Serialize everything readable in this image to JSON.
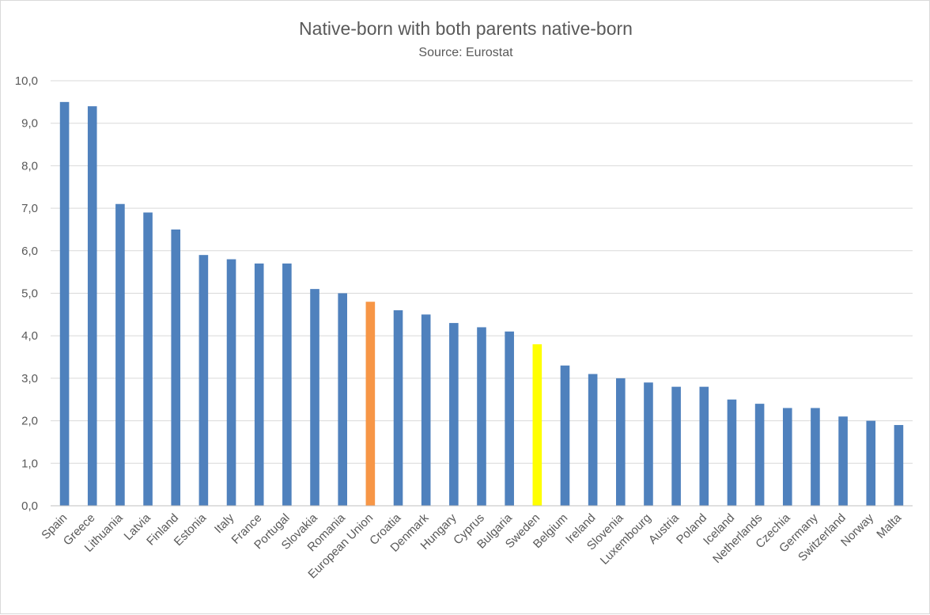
{
  "chart_data": {
    "type": "bar",
    "title": "Native-born with both parents native-born",
    "subtitle": "Source: Eurostat",
    "xlabel": "",
    "ylabel": "",
    "ylim": [
      0,
      10
    ],
    "yticks": [
      "0,0",
      "1,0",
      "2,0",
      "3,0",
      "4,0",
      "5,0",
      "6,0",
      "7,0",
      "8,0",
      "9,0",
      "10,0"
    ],
    "grid": true,
    "legend": "none",
    "categories": [
      "Spain",
      "Greece",
      "Lithuania",
      "Latvia",
      "Finland",
      "Estonia",
      "Italy",
      "France",
      "Portugal",
      "Slovakia",
      "Romania",
      "European Union",
      "Croatia",
      "Denmark",
      "Hungary",
      "Cyprus",
      "Bulgaria",
      "Sweden",
      "Belgium",
      "Ireland",
      "Slovenia",
      "Luxembourg",
      "Austria",
      "Poland",
      "Iceland",
      "Netherlands",
      "Czechia",
      "Germany",
      "Switzerland",
      "Norway",
      "Malta"
    ],
    "values": [
      9.5,
      9.4,
      7.1,
      6.9,
      6.5,
      5.9,
      5.8,
      5.7,
      5.7,
      5.1,
      5.0,
      4.8,
      4.6,
      4.5,
      4.3,
      4.2,
      4.1,
      3.8,
      3.3,
      3.1,
      3.0,
      2.9,
      2.8,
      2.8,
      2.5,
      2.4,
      2.3,
      2.3,
      2.1,
      2.0,
      1.9
    ],
    "colors": {
      "default": "#4f81bd",
      "highlight": {
        "European Union": "#f79646",
        "Sweden": "#ffff00"
      }
    }
  }
}
